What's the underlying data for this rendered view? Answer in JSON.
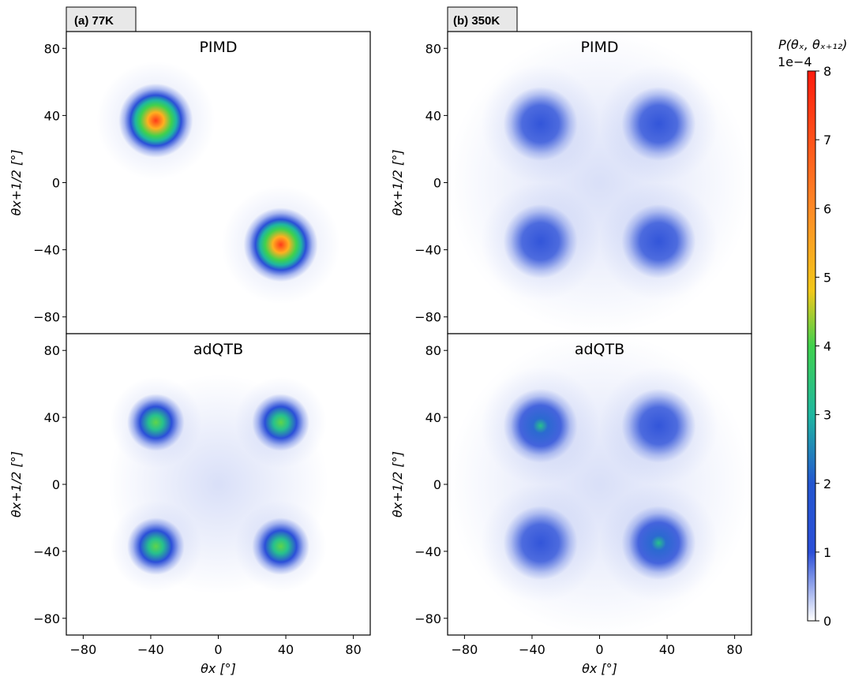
{
  "colors": {
    "blob_edge": "#2b4fd8",
    "blob_mid": "#27c18d",
    "blob_core": "#ff3a1a"
  },
  "panel_tags": {
    "a": "(a) 77K",
    "b": "(b) 350K"
  },
  "colorbar": {
    "label": "P(θₓ, θₓ₊₁₂)",
    "multiplier": "1e−4",
    "ticks": [
      "0",
      "1",
      "2",
      "3",
      "4",
      "5",
      "6",
      "7",
      "8"
    ],
    "range": [
      0,
      8
    ],
    "colormap": [
      "#ffffff",
      "#2b4fd8",
      "#1fb7a0",
      "#3fd14d",
      "#f2c81a",
      "#ff8a26",
      "#ff1a0d"
    ]
  },
  "chart_data": [
    {
      "type": "heatmap",
      "title": "PIMD",
      "panel": "(a) 77K",
      "xlabel": "θx [°]",
      "ylabel": "θx+1/2 [°]",
      "xlim": [
        -90,
        90
      ],
      "ylim": [
        -90,
        90
      ],
      "xticks": [
        -80,
        -40,
        0,
        40,
        80
      ],
      "yticks": [
        -80,
        -40,
        0,
        40,
        80
      ],
      "peaks": [
        {
          "x": -37,
          "y": 37,
          "value": 7.5
        },
        {
          "x": 37,
          "y": -37,
          "value": 7.5
        }
      ]
    },
    {
      "type": "heatmap",
      "title": "PIMD",
      "panel": "(b) 350K",
      "xlabel": "θx [°]",
      "ylabel": "θx+1/2 [°]",
      "xlim": [
        -90,
        90
      ],
      "ylim": [
        -90,
        90
      ],
      "xticks": [
        -80,
        -40,
        0,
        40,
        80
      ],
      "yticks": [
        -80,
        -40,
        0,
        40,
        80
      ],
      "peaks": [
        {
          "x": -35,
          "y": 35,
          "value": 1.6
        },
        {
          "x": 35,
          "y": 35,
          "value": 1.6
        },
        {
          "x": -35,
          "y": -35,
          "value": 1.6
        },
        {
          "x": 35,
          "y": -35,
          "value": 1.6
        }
      ]
    },
    {
      "type": "heatmap",
      "title": "adQTB",
      "panel": "(a) 77K",
      "xlabel": "θx [°]",
      "ylabel": "θx+1/2 [°]",
      "xlim": [
        -90,
        90
      ],
      "ylim": [
        -90,
        90
      ],
      "xticks": [
        -80,
        -40,
        0,
        40,
        80
      ],
      "yticks": [
        -80,
        -40,
        0,
        40,
        80
      ],
      "peaks": [
        {
          "x": -37,
          "y": 37,
          "value": 3.5
        },
        {
          "x": 37,
          "y": 37,
          "value": 3.3
        },
        {
          "x": -37,
          "y": -37,
          "value": 3.4
        },
        {
          "x": 37,
          "y": -37,
          "value": 3.5
        }
      ]
    },
    {
      "type": "heatmap",
      "title": "adQTB",
      "panel": "(b) 350K",
      "xlabel": "θx [°]",
      "ylabel": "θx+1/2 [°]",
      "xlim": [
        -90,
        90
      ],
      "ylim": [
        -90,
        90
      ],
      "xticks": [
        -80,
        -40,
        0,
        40,
        80
      ],
      "yticks": [
        -80,
        -40,
        0,
        40,
        80
      ],
      "peaks": [
        {
          "x": -35,
          "y": 35,
          "value": 2.4
        },
        {
          "x": 35,
          "y": 35,
          "value": 1.6
        },
        {
          "x": -35,
          "y": -35,
          "value": 1.6
        },
        {
          "x": 35,
          "y": -35,
          "value": 2.4
        }
      ]
    }
  ]
}
